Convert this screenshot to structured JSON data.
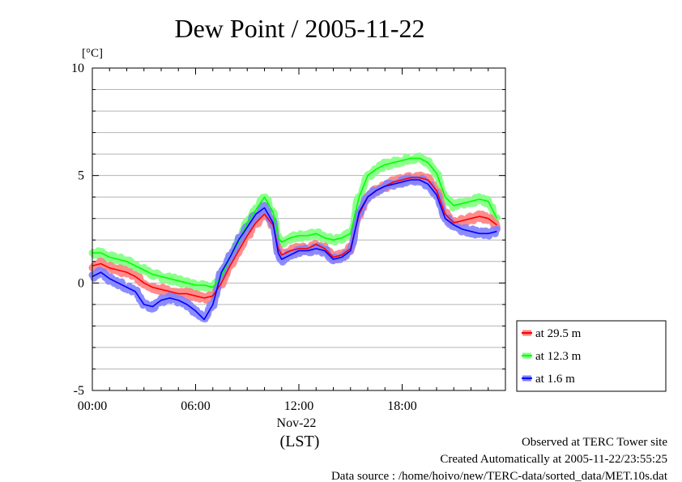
{
  "chart_data": {
    "type": "line",
    "title": "Dew Point / 2005-11-22",
    "ylabel": "[°C]",
    "xlabel": "(LST)",
    "x_unit": "hours",
    "ylim": [
      -5,
      10
    ],
    "xlim": [
      0,
      24
    ],
    "y_ticks": [
      -5,
      0,
      5,
      10
    ],
    "y_tick_labels": [
      "-5",
      "0",
      "5",
      "10"
    ],
    "x_ticks": [
      0,
      6,
      12,
      18
    ],
    "x_tick_labels": [
      "00:00",
      "06:00",
      "12:00",
      "18:00"
    ],
    "x_date_label": "Nov-22",
    "grid": "horizontal",
    "legend_position": "bottom-right",
    "series": [
      {
        "name": "at 29.5 m",
        "color": "#ff0000",
        "band_color": "#ff8080",
        "x": [
          0,
          0.5,
          1,
          1.5,
          2,
          2.5,
          3,
          3.5,
          4,
          4.5,
          5,
          5.5,
          6,
          6.5,
          7,
          7.5,
          8,
          8.5,
          9,
          9.5,
          10,
          10.5,
          10.8,
          11,
          11.5,
          12,
          12.5,
          13,
          13.5,
          14,
          14.5,
          15,
          15.5,
          16,
          16.5,
          17,
          17.5,
          18,
          18.5,
          19,
          19.5,
          20,
          20.5,
          21,
          21.5,
          22,
          22.5,
          23,
          23.5
        ],
        "y": [
          0.8,
          0.9,
          0.7,
          0.6,
          0.5,
          0.3,
          0.0,
          -0.2,
          -0.3,
          -0.4,
          -0.5,
          -0.5,
          -0.6,
          -0.7,
          -0.6,
          0.0,
          0.8,
          1.5,
          2.2,
          2.8,
          3.2,
          2.7,
          1.6,
          1.3,
          1.5,
          1.6,
          1.6,
          1.8,
          1.6,
          1.2,
          1.3,
          1.6,
          3.2,
          4.0,
          4.3,
          4.5,
          4.7,
          4.8,
          4.9,
          4.9,
          4.8,
          4.3,
          3.2,
          2.8,
          2.9,
          3.0,
          3.1,
          3.0,
          2.7
        ]
      },
      {
        "name": "at 12.3 m",
        "color": "#00ff00",
        "band_color": "#80ff80",
        "x": [
          0,
          0.5,
          1,
          1.5,
          2,
          2.5,
          3,
          3.5,
          4,
          4.5,
          5,
          5.5,
          6,
          6.5,
          7,
          7.5,
          8,
          8.5,
          9,
          9.5,
          10,
          10.5,
          10.8,
          11,
          11.5,
          12,
          12.5,
          13,
          13.5,
          14,
          14.5,
          15,
          15.5,
          16,
          16.5,
          17,
          17.5,
          18,
          18.5,
          19,
          19.5,
          20,
          20.5,
          21,
          21.5,
          22,
          22.5,
          23,
          23.5
        ],
        "y": [
          1.4,
          1.4,
          1.2,
          1.1,
          1.0,
          0.8,
          0.6,
          0.4,
          0.3,
          0.2,
          0.1,
          0.0,
          -0.1,
          -0.1,
          -0.2,
          0.3,
          1.2,
          1.9,
          2.8,
          3.4,
          4.0,
          3.3,
          2.1,
          1.9,
          2.1,
          2.2,
          2.2,
          2.3,
          2.1,
          2.0,
          2.1,
          2.3,
          4.0,
          5.0,
          5.3,
          5.5,
          5.6,
          5.7,
          5.8,
          5.8,
          5.6,
          5.1,
          4.0,
          3.6,
          3.7,
          3.8,
          3.9,
          3.8,
          3.0
        ]
      },
      {
        "name": "at 1.6 m",
        "color": "#0000ff",
        "band_color": "#8080ff",
        "x": [
          0,
          0.5,
          1,
          1.5,
          2,
          2.5,
          3,
          3.5,
          4,
          4.5,
          5,
          5.5,
          6,
          6.5,
          7,
          7.5,
          8,
          8.5,
          9,
          9.5,
          10,
          10.5,
          10.8,
          11,
          11.5,
          12,
          12.5,
          13,
          13.5,
          14,
          14.5,
          15,
          15.5,
          16,
          16.5,
          17,
          17.5,
          18,
          18.5,
          19,
          19.5,
          20,
          20.5,
          21,
          21.5,
          22,
          22.5,
          23,
          23.5
        ],
        "y": [
          0.3,
          0.5,
          0.2,
          0.0,
          -0.2,
          -0.4,
          -1.0,
          -1.1,
          -0.8,
          -0.7,
          -0.8,
          -1.0,
          -1.3,
          -1.7,
          -1.0,
          0.5,
          1.2,
          2.0,
          2.6,
          3.2,
          3.5,
          2.8,
          1.4,
          1.1,
          1.3,
          1.5,
          1.5,
          1.6,
          1.5,
          1.1,
          1.2,
          1.5,
          3.3,
          4.0,
          4.3,
          4.5,
          4.6,
          4.7,
          4.8,
          4.8,
          4.6,
          4.1,
          3.0,
          2.7,
          2.5,
          2.4,
          2.3,
          2.3,
          2.4
        ]
      }
    ]
  },
  "footer": {
    "site": "Observed at TERC Tower site",
    "created": "Created Automatically at 2005-11-22/23:55:25",
    "source": "Data source : /home/hoivo/new/TERC-data/sorted_data/MET.10s.dat"
  }
}
